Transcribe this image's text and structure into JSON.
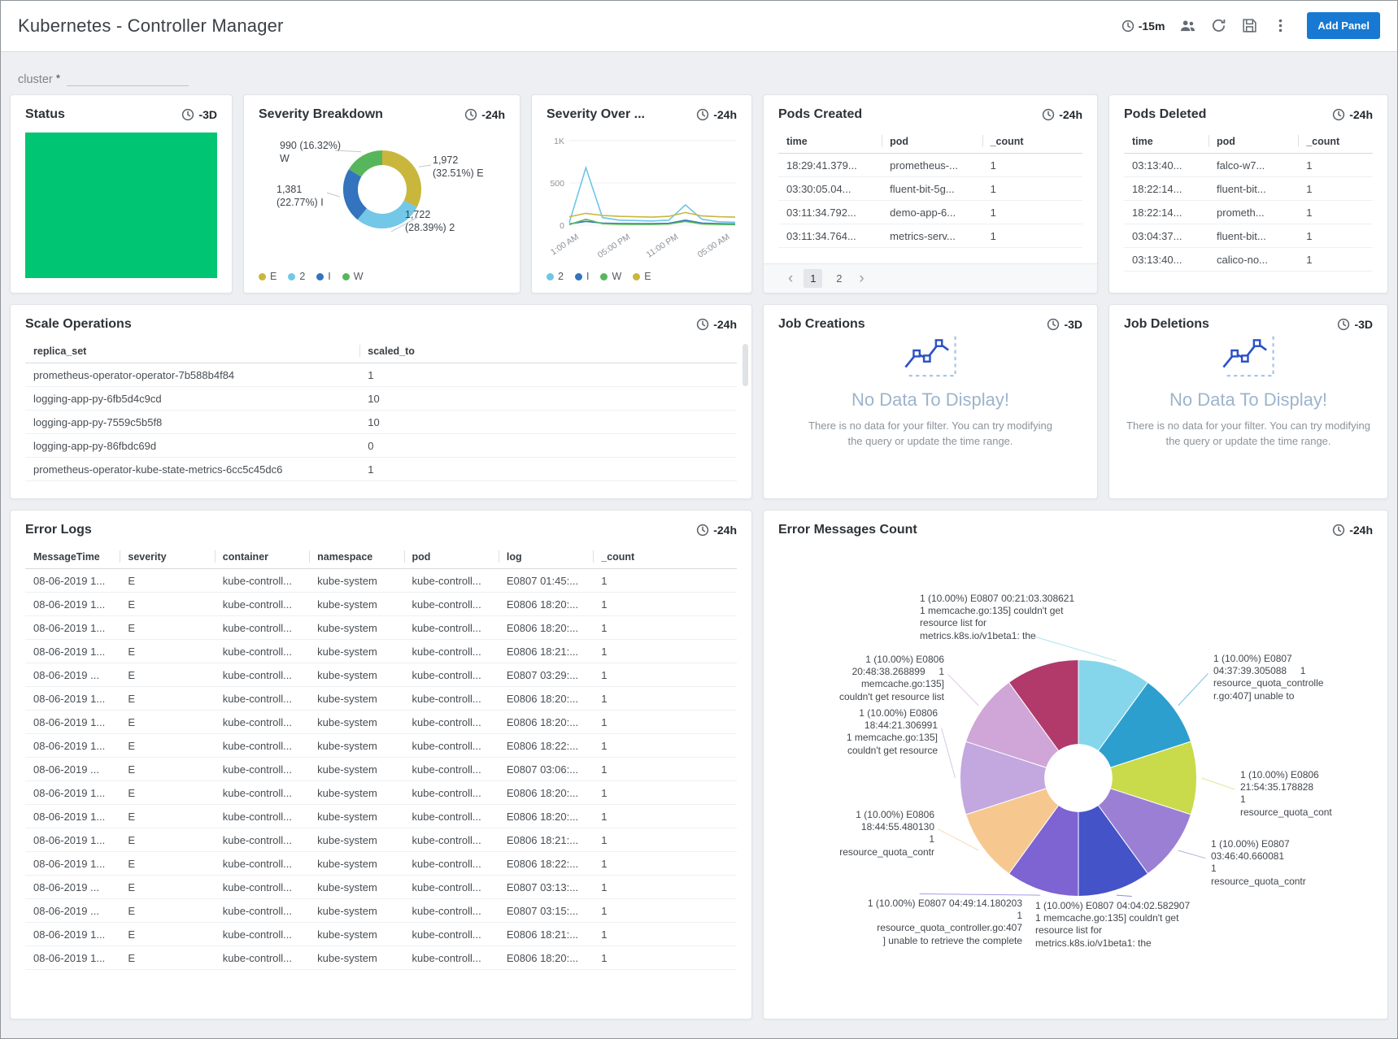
{
  "header": {
    "title": "Kubernetes - Controller Manager",
    "time_range": "-15m",
    "add_panel_label": "Add Panel"
  },
  "filter": {
    "label": "cluster",
    "required_mark": "*",
    "value": ""
  },
  "status_panel": {
    "title": "Status",
    "time_range": "-3D",
    "color": "#00c572"
  },
  "severity_breakdown": {
    "title": "Severity Breakdown",
    "time_range": "-24h",
    "chart_data": {
      "type": "pie",
      "slices": [
        {
          "label": "E",
          "value": 1972,
          "pct": 32.51,
          "color": "#c9b63c"
        },
        {
          "label": "2",
          "value": 1722,
          "pct": 28.39,
          "color": "#72c8e6"
        },
        {
          "label": "I",
          "value": 1381,
          "pct": 22.77,
          "color": "#3473bd"
        },
        {
          "label": "W",
          "value": 990,
          "pct": 16.32,
          "color": "#57b65b"
        }
      ],
      "callouts": [
        {
          "slice": "W",
          "lines": [
            "990 (16.32%)",
            "W"
          ]
        },
        {
          "slice": "E",
          "lines": [
            "1,972",
            "(32.51%) E"
          ]
        },
        {
          "slice": "I",
          "lines": [
            "1,381",
            "(22.77%) I"
          ]
        },
        {
          "slice": "2",
          "lines": [
            "1,722",
            "(28.39%) 2"
          ]
        }
      ],
      "legend": [
        "E",
        "2",
        "I",
        "W"
      ]
    }
  },
  "severity_over_time": {
    "title": "Severity Over ...",
    "time_range": "-24h",
    "chart_data": {
      "type": "line",
      "x_ticks": [
        "1:00 AM",
        "05:00 PM",
        "11:00 PM",
        "05:00 AM"
      ],
      "y_ticks": [
        "1K",
        "500",
        "0"
      ],
      "ylim": [
        0,
        1000
      ],
      "series": [
        {
          "name": "2",
          "color": "#6ec6e4",
          "values": [
            30,
            680,
            90,
            60,
            55,
            50,
            60,
            240,
            70,
            40,
            35
          ]
        },
        {
          "name": "I",
          "color": "#3473bd",
          "values": [
            15,
            45,
            25,
            20,
            18,
            18,
            22,
            60,
            25,
            18,
            15
          ]
        },
        {
          "name": "W",
          "color": "#57b65b",
          "values": [
            8,
            70,
            18,
            12,
            10,
            10,
            14,
            45,
            15,
            10,
            8
          ]
        },
        {
          "name": "E",
          "color": "#c9b63c",
          "values": [
            100,
            140,
            115,
            105,
            100,
            95,
            105,
            150,
            110,
            100,
            95
          ]
        }
      ],
      "legend": [
        "2",
        "I",
        "W",
        "E"
      ]
    }
  },
  "pods_created": {
    "title": "Pods Created",
    "time_range": "-24h",
    "table": {
      "headers": [
        "time",
        "pod",
        "_count"
      ],
      "rows": [
        [
          "18:29:41.379...",
          "prometheus-...",
          "1"
        ],
        [
          "03:30:05.04...",
          "fluent-bit-5g...",
          "1"
        ],
        [
          "03:11:34.792...",
          "demo-app-6...",
          "1"
        ],
        [
          "03:11:34.764...",
          "metrics-serv...",
          "1"
        ]
      ]
    },
    "pagination": {
      "prev": "‹",
      "next": "›",
      "pages": [
        "1",
        "2"
      ],
      "active": "1"
    }
  },
  "pods_deleted": {
    "title": "Pods Deleted",
    "time_range": "-24h",
    "table": {
      "headers": [
        "time",
        "pod",
        "_count"
      ],
      "rows": [
        [
          "03:13:40...",
          "falco-w7...",
          "1"
        ],
        [
          "18:22:14...",
          "fluent-bit...",
          "1"
        ],
        [
          "18:22:14...",
          "prometh...",
          "1"
        ],
        [
          "03:04:37...",
          "fluent-bit...",
          "1"
        ],
        [
          "03:13:40...",
          "calico-no...",
          "1"
        ]
      ]
    }
  },
  "scale_operations": {
    "title": "Scale Operations",
    "time_range": "-24h",
    "table": {
      "headers": [
        "replica_set",
        "scaled_to"
      ],
      "rows": [
        [
          "prometheus-operator-operator-7b588b4f84",
          "1"
        ],
        [
          "logging-app-py-6fb5d4c9cd",
          "10"
        ],
        [
          "logging-app-py-7559c5b5f8",
          "10"
        ],
        [
          "logging-app-py-86fbdc69d",
          "0"
        ],
        [
          "prometheus-operator-kube-state-metrics-6cc5c45dc6",
          "1"
        ]
      ]
    }
  },
  "job_creations": {
    "title": "Job Creations",
    "time_range": "-3D",
    "no_data_title": "No Data To Display!",
    "no_data_message": "There is no data for your filter. You can try modifying the query or update the time range."
  },
  "job_deletions": {
    "title": "Job Deletions",
    "time_range": "-3D",
    "no_data_title": "No Data To Display!",
    "no_data_message": "There is no data for your filter. You can try modifying the query or update the time range."
  },
  "error_logs": {
    "title": "Error Logs",
    "time_range": "-24h",
    "table": {
      "headers": [
        "MessageTime",
        "severity",
        "container",
        "namespace",
        "pod",
        "log",
        "_count"
      ],
      "rows": [
        [
          "08-06-2019 1...",
          "E",
          "kube-controll...",
          "kube-system",
          "kube-controll...",
          "E0807 01:45:...",
          "1"
        ],
        [
          "08-06-2019 1...",
          "E",
          "kube-controll...",
          "kube-system",
          "kube-controll...",
          "E0806 18:20:...",
          "1"
        ],
        [
          "08-06-2019 1...",
          "E",
          "kube-controll...",
          "kube-system",
          "kube-controll...",
          "E0806 18:20:...",
          "1"
        ],
        [
          "08-06-2019 1...",
          "E",
          "kube-controll...",
          "kube-system",
          "kube-controll...",
          "E0806 18:21:...",
          "1"
        ],
        [
          "08-06-2019 ...",
          "E",
          "kube-controll...",
          "kube-system",
          "kube-controll...",
          "E0807 03:29:...",
          "1"
        ],
        [
          "08-06-2019 1...",
          "E",
          "kube-controll...",
          "kube-system",
          "kube-controll...",
          "E0806 18:20:...",
          "1"
        ],
        [
          "08-06-2019 1...",
          "E",
          "kube-controll...",
          "kube-system",
          "kube-controll...",
          "E0806 18:20:...",
          "1"
        ],
        [
          "08-06-2019 1...",
          "E",
          "kube-controll...",
          "kube-system",
          "kube-controll...",
          "E0806 18:22:...",
          "1"
        ],
        [
          "08-06-2019 ...",
          "E",
          "kube-controll...",
          "kube-system",
          "kube-controll...",
          "E0807 03:06:...",
          "1"
        ],
        [
          "08-06-2019 1...",
          "E",
          "kube-controll...",
          "kube-system",
          "kube-controll...",
          "E0806 18:20:...",
          "1"
        ],
        [
          "08-06-2019 1...",
          "E",
          "kube-controll...",
          "kube-system",
          "kube-controll...",
          "E0806 18:20:...",
          "1"
        ],
        [
          "08-06-2019 1...",
          "E",
          "kube-controll...",
          "kube-system",
          "kube-controll...",
          "E0806 18:21:...",
          "1"
        ],
        [
          "08-06-2019 1...",
          "E",
          "kube-controll...",
          "kube-system",
          "kube-controll...",
          "E0806 18:22:...",
          "1"
        ],
        [
          "08-06-2019 ...",
          "E",
          "kube-controll...",
          "kube-system",
          "kube-controll...",
          "E0807 03:13:...",
          "1"
        ],
        [
          "08-06-2019 ...",
          "E",
          "kube-controll...",
          "kube-system",
          "kube-controll...",
          "E0807 03:15:...",
          "1"
        ],
        [
          "08-06-2019 1...",
          "E",
          "kube-controll...",
          "kube-system",
          "kube-controll...",
          "E0806 18:21:...",
          "1"
        ],
        [
          "08-06-2019 1...",
          "E",
          "kube-controll...",
          "kube-system",
          "kube-controll...",
          "E0806 18:20:...",
          "1"
        ]
      ]
    }
  },
  "error_messages_count": {
    "title": "Error Messages Count",
    "time_range": "-24h",
    "chart_data": {
      "type": "pie",
      "slices": [
        {
          "value": 1,
          "pct": 10,
          "color": "#85d6eb",
          "label_lines": [
            "1 (10.00%) E0807 00:21:03.308621",
            "1 memcache.go:135] couldn't get",
            "resource list for",
            "metrics.k8s.io/v1beta1: the"
          ]
        },
        {
          "value": 1,
          "pct": 10,
          "color": "#2d9fce",
          "label_lines": [
            "1 (10.00%) E0807",
            "04:37:39.305088     1",
            "resource_quota_controlle",
            "r.go:407] unable to"
          ]
        },
        {
          "value": 1,
          "pct": 10,
          "color": "#c9da4b",
          "label_lines": [
            "1 (10.00%) E0806",
            "21:54:35.178828",
            "1",
            "resource_quota_cont"
          ]
        },
        {
          "value": 1,
          "pct": 10,
          "color": "#9b7fd4",
          "label_lines": [
            "1 (10.00%) E0807",
            "03:46:40.660081",
            "1",
            "resource_quota_contr"
          ]
        },
        {
          "value": 1,
          "pct": 10,
          "color": "#4553c9",
          "label_lines": [
            "1 (10.00%) E0807 04:04:02.582907",
            "1 memcache.go:135] couldn't get",
            "resource list for",
            "metrics.k8s.io/v1beta1: the"
          ]
        },
        {
          "value": 1,
          "pct": 10,
          "color": "#7e63d2",
          "label_lines": [
            "1 (10.00%) E0807 04:49:14.180203",
            "1",
            "resource_quota_controller.go:407",
            "] unable to retrieve the complete"
          ]
        },
        {
          "value": 1,
          "pct": 10,
          "color": "#f6c890",
          "label_lines": [
            "1 (10.00%) E0806",
            "18:44:55.480130",
            "1",
            "resource_quota_contr"
          ]
        },
        {
          "value": 1,
          "pct": 10,
          "color": "#c3a7df",
          "label_lines": [
            "1 (10.00%) E0806",
            "18:44:21.306991",
            "1 memcache.go:135]",
            "couldn't get resource"
          ]
        },
        {
          "value": 1,
          "pct": 10,
          "color": "#d0a6d8",
          "label_lines": [
            "1 (10.00%) E0806",
            "20:48:38.268899     1",
            "memcache.go:135]",
            "couldn't get resource list"
          ]
        },
        {
          "value": 1,
          "pct": 10,
          "color": "#b13a6b",
          "label_lines": null
        }
      ]
    }
  }
}
